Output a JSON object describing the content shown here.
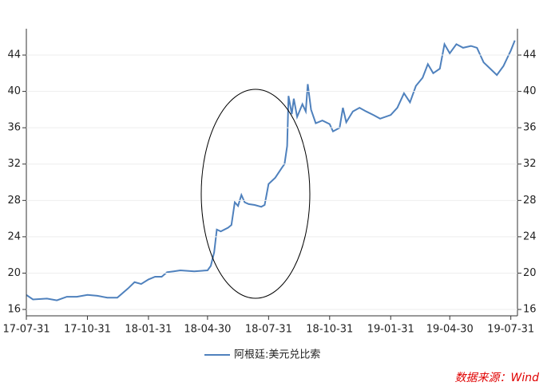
{
  "chart_data": {
    "type": "line",
    "x": [
      "17-07-31",
      "17-08-10",
      "17-08-31",
      "17-09-15",
      "17-09-30",
      "17-10-15",
      "17-10-31",
      "17-11-15",
      "17-11-30",
      "17-12-15",
      "17-12-31",
      "18-01-10",
      "18-01-20",
      "18-01-31",
      "18-02-10",
      "18-02-20",
      "18-02-28",
      "18-03-10",
      "18-03-20",
      "18-04-10",
      "18-04-30",
      "18-05-05",
      "18-05-10",
      "18-05-14",
      "18-05-20",
      "18-05-31",
      "18-06-05",
      "18-06-10",
      "18-06-15",
      "18-06-20",
      "18-06-25",
      "18-07-01",
      "18-07-10",
      "18-07-20",
      "18-07-25",
      "18-07-31",
      "18-08-10",
      "18-08-20",
      "18-08-24",
      "18-08-28",
      "18-08-30",
      "18-09-04",
      "18-09-07",
      "18-09-12",
      "18-09-20",
      "18-09-25",
      "18-09-28",
      "18-10-03",
      "18-10-10",
      "18-10-20",
      "18-10-31",
      "18-11-05",
      "18-11-15",
      "18-11-20",
      "18-11-25",
      "18-12-05",
      "18-12-15",
      "18-12-25",
      "19-01-05",
      "19-01-15",
      "19-01-31",
      "19-02-10",
      "19-02-20",
      "19-03-01",
      "19-03-10",
      "19-03-20",
      "19-03-28",
      "19-04-05",
      "19-04-15",
      "19-04-22",
      "19-04-30",
      "19-05-10",
      "19-05-20",
      "19-06-01",
      "19-06-10",
      "19-06-20",
      "19-06-30",
      "19-07-10",
      "19-07-20",
      "19-07-31",
      "19-08-06"
    ],
    "series": [
      {
        "name": "阿根廷:美元兑比索",
        "color": "#4f81bd",
        "values": [
          17.6,
          17.1,
          17.2,
          17.0,
          17.4,
          17.4,
          17.6,
          17.5,
          17.3,
          17.3,
          18.3,
          19.0,
          18.8,
          19.3,
          19.6,
          19.6,
          20.1,
          20.2,
          20.3,
          20.2,
          20.3,
          20.8,
          22.3,
          24.8,
          24.6,
          25.0,
          25.3,
          27.8,
          27.4,
          28.6,
          27.8,
          27.6,
          27.5,
          27.3,
          27.5,
          29.8,
          30.5,
          31.6,
          32.0,
          34.0,
          39.5,
          37.5,
          39.2,
          37.2,
          38.6,
          37.8,
          40.8,
          38.0,
          36.5,
          36.8,
          36.4,
          35.6,
          36.0,
          38.2,
          36.6,
          37.8,
          38.2,
          37.8,
          37.4,
          37.0,
          37.4,
          38.2,
          39.8,
          38.8,
          40.6,
          41.5,
          43.0,
          42.0,
          42.5,
          45.2,
          44.2,
          45.2,
          44.8,
          45.0,
          44.8,
          43.2,
          42.5,
          41.8,
          42.8,
          44.5,
          45.6
        ]
      }
    ],
    "xlim": [
      "17-07-31",
      "19-08-10"
    ],
    "xticks": [
      "17-07-31",
      "17-10-31",
      "18-01-31",
      "18-04-30",
      "18-07-31",
      "18-10-31",
      "19-01-31",
      "19-04-30",
      "19-07-31"
    ],
    "ylim": [
      15.3,
      46.9
    ],
    "yticks": [
      16,
      20,
      24,
      28,
      32,
      36,
      40,
      44
    ],
    "y2lim": [
      15.3,
      46.9
    ],
    "y2ticks": [
      16,
      20,
      24,
      28,
      32,
      36,
      40,
      44
    ],
    "grid": true,
    "source": "数据来源：Wind"
  }
}
